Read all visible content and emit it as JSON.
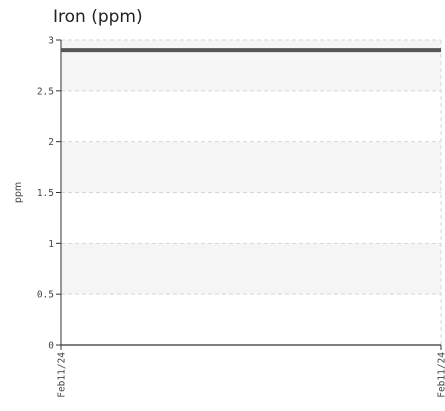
{
  "chart_data": {
    "type": "line",
    "title": "Iron (ppm)",
    "xlabel": "",
    "ylabel": "ppm",
    "x": [
      "Feb11/24",
      "Feb11/24"
    ],
    "series": [
      {
        "values": [
          2.9,
          2.9
        ]
      }
    ],
    "ylim": [
      0,
      3
    ],
    "yticks": [
      0,
      0.5,
      1,
      1.5,
      2,
      2.5,
      3
    ],
    "ytick_labels": [
      "0",
      "0.5",
      "1",
      "1.5",
      "2",
      "2.5",
      "3"
    ],
    "xtick_labels": [
      "Feb11/24",
      "Feb11/24"
    ],
    "grid": true,
    "legend": "none",
    "colors": {
      "line": "#555555",
      "band": "#f5f5f5",
      "grid": "#d6d6d6",
      "axis": "#333333"
    }
  }
}
